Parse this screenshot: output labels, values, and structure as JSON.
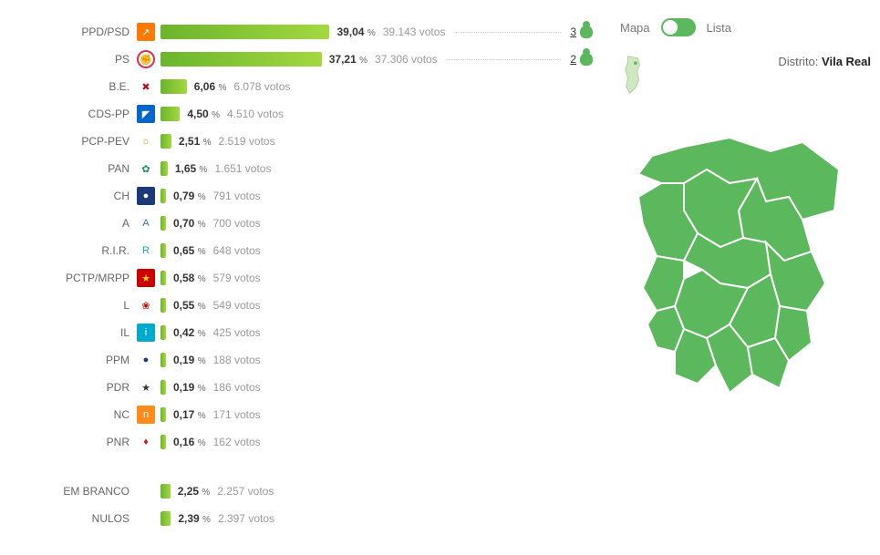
{
  "colors": {
    "bar_gradient_start": "#6bb52c",
    "bar_gradient_end": "#a4d83f",
    "map_fill": "#5cb85c",
    "map_stroke": "#ffffff",
    "text_main": "#555555",
    "text_muted": "#999999"
  },
  "max_percent_scale": 40,
  "district_label": "Distrito:",
  "district_name": "Vila Real",
  "toggle": {
    "left": "Mapa",
    "right": "Lista"
  },
  "votes_suffix": "votos",
  "parties": [
    {
      "name": "PPD/PSD",
      "pct": "39,04",
      "votes": "39.143",
      "seats": 3,
      "icon_bg": "#ff7a00",
      "icon_txt": "↗",
      "icon_fg": "#fff"
    },
    {
      "name": "PS",
      "pct": "37,21",
      "votes": "37.306",
      "seats": 2,
      "icon_bg": "#ffffff",
      "icon_txt": "✊",
      "icon_fg": "#d9304c",
      "ring": "#d9304c"
    },
    {
      "name": "B.E.",
      "pct": "6,06",
      "votes": "6.078",
      "icon_bg": "#ffffff",
      "icon_txt": "✖",
      "icon_fg": "#b11226"
    },
    {
      "name": "CDS-PP",
      "pct": "4,50",
      "votes": "4.510",
      "icon_bg": "#0066cc",
      "icon_txt": "◤",
      "icon_fg": "#fff"
    },
    {
      "name": "PCP-PEV",
      "pct": "2,51",
      "votes": "2.519",
      "icon_bg": "#ffffff",
      "icon_txt": "☼",
      "icon_fg": "#d4a016"
    },
    {
      "name": "PAN",
      "pct": "1,65",
      "votes": "1.651",
      "icon_bg": "#ffffff",
      "icon_txt": "✿",
      "icon_fg": "#1b8a5a"
    },
    {
      "name": "CH",
      "pct": "0,79",
      "votes": "791",
      "icon_bg": "#1a3a7a",
      "icon_txt": "●",
      "icon_fg": "#fff"
    },
    {
      "name": "A",
      "pct": "0,70",
      "votes": "700",
      "icon_bg": "#ffffff",
      "icon_txt": "A",
      "icon_fg": "#2a7a9a"
    },
    {
      "name": "R.I.R.",
      "pct": "0,65",
      "votes": "648",
      "icon_bg": "#ffffff",
      "icon_txt": "R",
      "icon_fg": "#1aa3a3"
    },
    {
      "name": "PCTP/MRPP",
      "pct": "0,58",
      "votes": "579",
      "icon_bg": "#cc0000",
      "icon_txt": "★",
      "icon_fg": "#ffd400"
    },
    {
      "name": "L",
      "pct": "0,55",
      "votes": "549",
      "icon_bg": "#ffffff",
      "icon_txt": "❀",
      "icon_fg": "#cc0000"
    },
    {
      "name": "IL",
      "pct": "0,42",
      "votes": "425",
      "icon_bg": "#00aacc",
      "icon_txt": "i",
      "icon_fg": "#fff"
    },
    {
      "name": "PPM",
      "pct": "0,19",
      "votes": "188",
      "icon_bg": "#ffffff",
      "icon_txt": "●",
      "icon_fg": "#1a3a7a"
    },
    {
      "name": "PDR",
      "pct": "0,19",
      "votes": "186",
      "icon_bg": "#ffffff",
      "icon_txt": "★",
      "icon_fg": "#333"
    },
    {
      "name": "NC",
      "pct": "0,17",
      "votes": "171",
      "icon_bg": "#ff8c1a",
      "icon_txt": "n",
      "icon_fg": "#fff"
    },
    {
      "name": "PNR",
      "pct": "0,16",
      "votes": "162",
      "icon_bg": "#ffffff",
      "icon_txt": "♦",
      "icon_fg": "#cc2222"
    }
  ],
  "extras": [
    {
      "name": "EM BRANCO",
      "pct": "2,25",
      "votes": "2.257"
    },
    {
      "name": "NULOS",
      "pct": "2,39",
      "votes": "2.397"
    }
  ]
}
